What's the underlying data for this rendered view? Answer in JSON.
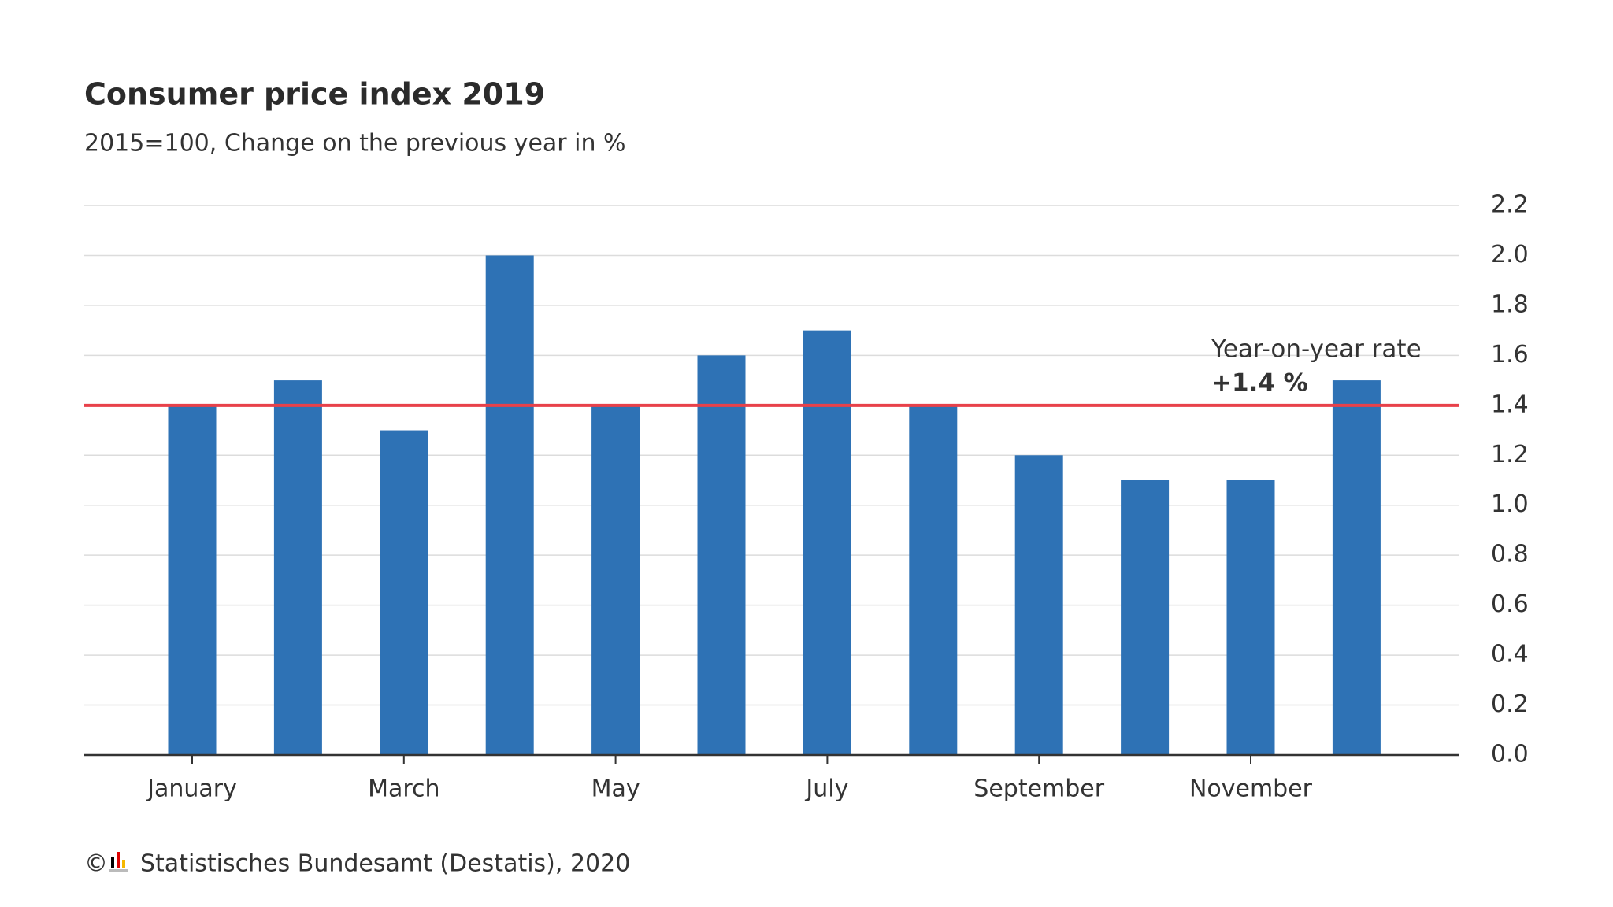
{
  "chart_data": {
    "type": "bar",
    "title": "Consumer price index 2019",
    "subtitle": "2015=100, Change on the previous year in %",
    "categories": [
      "January",
      null,
      "March",
      null,
      "May",
      null,
      "July",
      null,
      "September",
      null,
      "November",
      null
    ],
    "values": [
      1.4,
      1.5,
      1.3,
      2.0,
      1.4,
      1.6,
      1.7,
      1.4,
      1.2,
      1.1,
      1.1,
      1.5
    ],
    "color": "#2e72b5",
    "ylim": [
      0,
      2.2
    ],
    "yticks": [
      {
        "value": 0,
        "label": "0.0"
      },
      0.2,
      0.4,
      0.6,
      0.8,
      {
        "value": 1,
        "label": "1.0"
      },
      1.2,
      1.4,
      1.6,
      1.8,
      {
        "value": 2,
        "label": "2.0"
      },
      2.2
    ],
    "grid": true,
    "reference_line": {
      "value": 1.4,
      "label": "+1.4 %",
      "text": "Year-on-year rate",
      "color": "#e8414a"
    },
    "copyright": "©",
    "source": "Statistisches Bundesamt (Destatis), 2020"
  }
}
